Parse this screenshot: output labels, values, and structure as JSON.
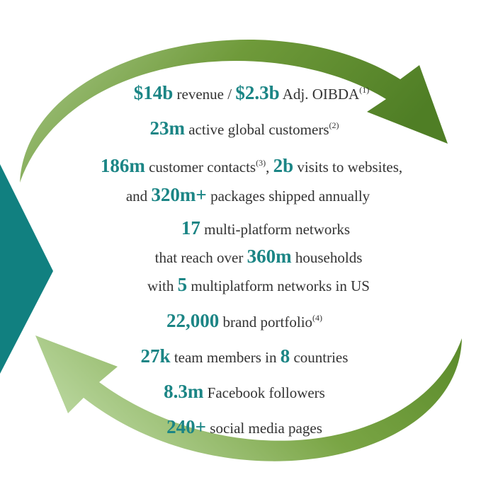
{
  "lines": [
    {
      "segments": [
        {
          "text": "$14b",
          "style": "number"
        },
        {
          "text": " revenue / ",
          "style": "plain"
        },
        {
          "text": "$2.3b",
          "style": "number"
        },
        {
          "text": " Adj. OIBDA",
          "style": "plain"
        },
        {
          "text": "(1)",
          "style": "note"
        }
      ]
    },
    {
      "segments": [
        {
          "text": "23m",
          "style": "number"
        },
        {
          "text": " active global customers",
          "style": "plain"
        },
        {
          "text": "(2)",
          "style": "note"
        }
      ]
    },
    {
      "segments": [
        {
          "text": "186m",
          "style": "number"
        },
        {
          "text": " customer contacts",
          "style": "plain"
        },
        {
          "text": "(3)",
          "style": "note"
        },
        {
          "text": ", ",
          "style": "plain"
        },
        {
          "text": "2b",
          "style": "number"
        },
        {
          "text": " visits to websites,",
          "style": "plain"
        }
      ]
    },
    {
      "segments": [
        {
          "text": "and ",
          "style": "plain"
        },
        {
          "text": "320m+",
          "style": "number"
        },
        {
          "text": " packages shipped annually",
          "style": "plain"
        }
      ]
    },
    {
      "segments": [
        {
          "text": "17",
          "style": "number"
        },
        {
          "text": " multi-platform networks",
          "style": "plain"
        }
      ]
    },
    {
      "segments": [
        {
          "text": "that reach over ",
          "style": "plain"
        },
        {
          "text": "360m",
          "style": "number"
        },
        {
          "text": " households",
          "style": "plain"
        }
      ]
    },
    {
      "segments": [
        {
          "text": "with ",
          "style": "plain"
        },
        {
          "text": "5",
          "style": "number"
        },
        {
          "text": " multiplatform networks in US",
          "style": "plain"
        }
      ]
    },
    {
      "segments": [
        {
          "text": "22,000",
          "style": "number"
        },
        {
          "text": " brand portfolio",
          "style": "plain"
        },
        {
          "text": "(4)",
          "style": "note"
        }
      ]
    },
    {
      "segments": [
        {
          "text": "27k",
          "style": "number"
        },
        {
          "text": " team members in ",
          "style": "plain"
        },
        {
          "text": "8",
          "style": "number"
        },
        {
          "text": " countries",
          "style": "plain"
        }
      ]
    },
    {
      "segments": [
        {
          "text": "8.3m",
          "style": "number"
        },
        {
          "text": " Facebook followers",
          "style": "plain"
        }
      ]
    },
    {
      "segments": [
        {
          "text": "240+",
          "style": "number"
        },
        {
          "text": " social media pages",
          "style": "plain"
        }
      ]
    }
  ]
}
